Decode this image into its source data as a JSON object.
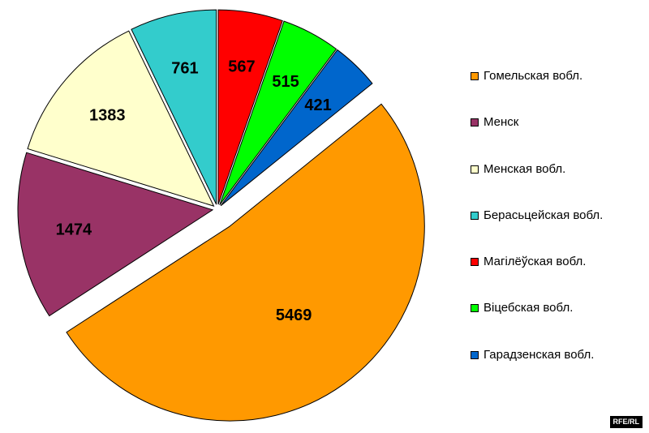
{
  "chart_data": {
    "type": "pie",
    "title": "",
    "legend_position": "right",
    "slices": [
      {
        "label": "Гомельская вобл.",
        "value": 5469,
        "color": "#FF9900",
        "exploded": true
      },
      {
        "label": "Менск",
        "value": 1474,
        "color": "#993366",
        "exploded": false
      },
      {
        "label": "Менская вобл.",
        "value": 1383,
        "color": "#FFFFCC",
        "exploded": false
      },
      {
        "label": "Берасьцейская вобл.",
        "value": 761,
        "color": "#33CCCC",
        "exploded": false
      },
      {
        "label": "Магілёўская вобл.",
        "value": 567,
        "color": "#FF0000",
        "exploded": false
      },
      {
        "label": "Віцебская вобл.",
        "value": 515,
        "color": "#00FF00",
        "exploded": false
      },
      {
        "label": "Гарадзенская вобл.",
        "value": 421,
        "color": "#0066CC",
        "exploded": false
      }
    ]
  },
  "source": "RFE/RL"
}
